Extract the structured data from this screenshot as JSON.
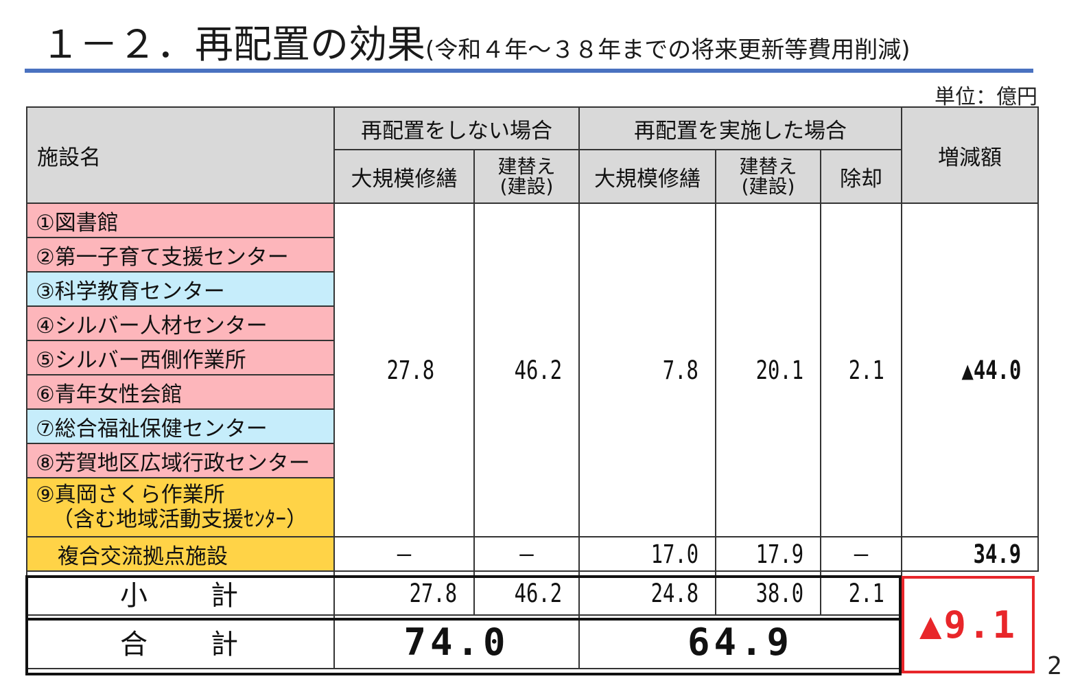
{
  "title": {
    "main": "１－２．再配置の効果",
    "sub": "(令和４年～３８年までの将来更新等費用削減)"
  },
  "unit_label": "単位：億円",
  "page_number": "2",
  "table": {
    "header": {
      "facility_name": "施設名",
      "group_without": "再配置をしない場合",
      "group_with": "再配置を実施した場合",
      "diff": "増減額",
      "major_repair": "大規模修繕",
      "rebuild_line1": "建替え",
      "rebuild_line2": "(建設)",
      "demolition": "除却"
    },
    "facilities": [
      {
        "name": "①図書館",
        "color": "#fdb6bb"
      },
      {
        "name": "②第一子育て支援センター",
        "color": "#fdb6bb"
      },
      {
        "name": "③科学教育センター",
        "color": "#c6edfb"
      },
      {
        "name": "④シルバー人材センター",
        "color": "#fdb6bb"
      },
      {
        "name": "⑤シルバー西側作業所",
        "color": "#fdb6bb"
      },
      {
        "name": "⑥青年女性会館",
        "color": "#fdb6bb"
      },
      {
        "name": "⑦総合福祉保健センター",
        "color": "#c6edfb"
      },
      {
        "name": "⑧芳賀地区広域行政センター",
        "color": "#fdb6bb"
      },
      {
        "name_line1": "⑨真岡さくら作業所",
        "name_line2": "（含む地域活動支援ｾﾝﾀｰ）",
        "color": "#ffd347"
      }
    ],
    "existing_values": {
      "without_major_repair": "27.8",
      "without_rebuild": "46.2",
      "with_major_repair": "7.8",
      "with_rebuild": "20.1",
      "with_demolition": "2.1",
      "diff": "▲44.0"
    },
    "new_facility": {
      "name": "複合交流拠点施設",
      "color": "#ffd347",
      "without_major_repair": "―",
      "without_rebuild": "―",
      "with_major_repair": "17.0",
      "with_rebuild": "17.9",
      "with_demolition": "―",
      "diff": "34.9"
    },
    "subtotal": {
      "label": "小　　計",
      "without_major_repair": "27.8",
      "without_rebuild": "46.2",
      "with_major_repair": "24.8",
      "with_rebuild": "38.0",
      "with_demolition": "2.1"
    },
    "total": {
      "label": "合　　計",
      "without": "74.0",
      "with": "64.9"
    },
    "net_change": "▲9.1"
  },
  "colors": {
    "title_rule": "#4a72c0",
    "header_bg": "#d9d9d9",
    "pink": "#fdb6bb",
    "blue": "#c6edfb",
    "gold": "#ffd347",
    "highlight_red": "#e8262a"
  }
}
